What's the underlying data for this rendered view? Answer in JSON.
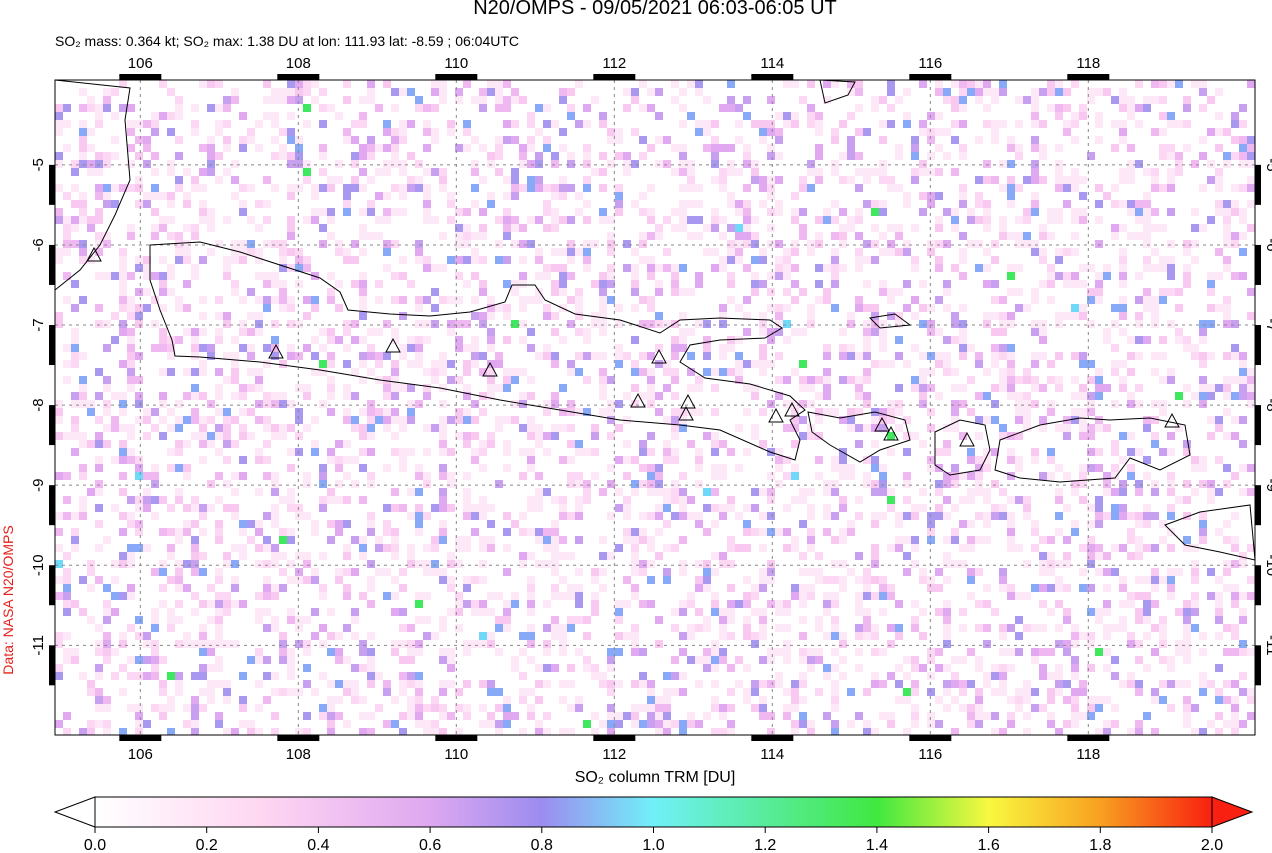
{
  "map": {
    "title": "N20/OMPS - 09/05/2021 06:03-06:05 UT",
    "subtitle": "SO₂ mass: 0.364 kt; SO₂ max: 1.38 DU at lon: 111.93 lat: -8.59 ; 06:04UTC",
    "lon_range": [
      104.92,
      120.11
    ],
    "lat_range": [
      -3.94,
      -12.12
    ],
    "lon_ticks": [
      106,
      108,
      110,
      112,
      114,
      116,
      118
    ],
    "lat_ticks": [
      -5,
      -6,
      -7,
      -8,
      -9,
      -10,
      -11
    ],
    "credit": "Data: NASA N20/OMPS"
  },
  "colorbar": {
    "label": "SO₂ column TRM [DU]",
    "range": [
      0,
      2
    ],
    "ticks": [
      {
        "value": 0,
        "label": "0.0"
      },
      {
        "value": 0.2,
        "label": "0.2"
      },
      {
        "value": 0.4,
        "label": "0.4"
      },
      {
        "value": 0.6,
        "label": "0.6"
      },
      {
        "value": 0.8,
        "label": "0.8"
      },
      {
        "value": 1,
        "label": "1.0"
      },
      {
        "value": 1.2,
        "label": "1.2"
      },
      {
        "value": 1.4,
        "label": "1.4"
      },
      {
        "value": 1.6,
        "label": "1.6"
      },
      {
        "value": 1.8,
        "label": "1.8"
      },
      {
        "value": 2,
        "label": "2.0"
      }
    ]
  }
}
